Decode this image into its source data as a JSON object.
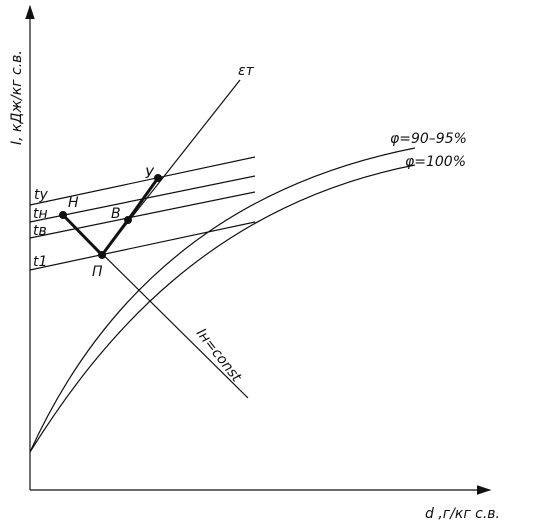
{
  "axes": {
    "y_label": "I, кДж/кг с.в.",
    "x_label": "d ,г/кг с.в."
  },
  "isotherms": [
    "tу",
    "tн",
    "tв",
    "t1"
  ],
  "lines": {
    "process": "εт",
    "enthalpy": "Iн=const"
  },
  "curves": [
    "φ=90–95%",
    "φ=100%"
  ],
  "points": [
    "Н",
    "П",
    "В",
    "У"
  ]
}
